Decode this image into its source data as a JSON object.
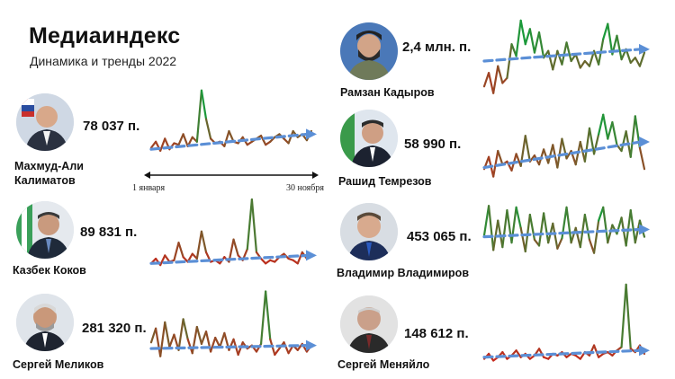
{
  "header": {
    "title": "Медиаиндекс",
    "subtitle": "Динамика и тренды 2022"
  },
  "axis": {
    "start_label": "1 января",
    "end_label": "30 ноября"
  },
  "colors": {
    "high": "#1a9a3a",
    "mid": "#7a5a2a",
    "low": "#e01818",
    "trend": "#5b8fd6"
  },
  "chart_data": [
    {
      "type": "line",
      "person": "Махмуд-Али Калиматов",
      "name_lines": [
        "Махмуд-Али",
        "Калиматов"
      ],
      "value_label": "78 037 п.",
      "values": [
        22,
        30,
        18,
        34,
        20,
        28,
        26,
        40,
        24,
        36,
        30,
        98,
        60,
        34,
        28,
        30,
        24,
        44,
        30,
        28,
        36,
        26,
        30,
        34,
        38,
        26,
        30,
        36,
        40,
        34,
        28,
        44,
        36,
        40,
        32,
        44
      ],
      "trend": [
        20,
        40
      ]
    },
    {
      "type": "line",
      "person": "Казбек Коков",
      "name_lines": [
        "Казбек Коков"
      ],
      "value_label": "89 831 п.",
      "values": [
        12,
        18,
        10,
        22,
        14,
        16,
        38,
        20,
        14,
        24,
        18,
        52,
        26,
        14,
        16,
        12,
        20,
        14,
        42,
        22,
        16,
        30,
        92,
        26,
        18,
        12,
        16,
        14,
        20,
        24,
        18,
        16,
        12,
        26,
        18,
        22
      ],
      "trend": [
        12,
        22
      ]
    },
    {
      "type": "line",
      "person": "Сергей Меликов",
      "name_lines": [
        "Сергей Меликов"
      ],
      "value_label": "281 320 п.",
      "values": [
        30,
        48,
        12,
        56,
        24,
        40,
        20,
        60,
        34,
        16,
        50,
        28,
        44,
        18,
        36,
        24,
        42,
        20,
        34,
        14,
        30,
        22,
        26,
        18,
        28,
        96,
        34,
        14,
        22,
        30,
        16,
        26,
        20,
        28,
        18,
        26
      ],
      "trend": [
        22,
        26
      ]
    },
    {
      "type": "line",
      "person": "Рамзан Кадыров",
      "name_lines": [
        "Рамзан Кадыров"
      ],
      "value_label": "2,4 млн. п.",
      "values": [
        20,
        36,
        12,
        44,
        24,
        30,
        70,
        56,
        98,
        70,
        88,
        60,
        84,
        54,
        62,
        40,
        62,
        46,
        72,
        50,
        58,
        42,
        50,
        44,
        62,
        46,
        76,
        94,
        58,
        80,
        52,
        64,
        48,
        54,
        44,
        60
      ],
      "trend": [
        50,
        64
      ]
    },
    {
      "type": "line",
      "person": "Рашид Темрезов",
      "name_lines": [
        "Рашид Темрезов"
      ],
      "value_label": "58 990 п.",
      "values": [
        20,
        36,
        10,
        44,
        26,
        30,
        18,
        40,
        24,
        64,
        30,
        38,
        26,
        46,
        28,
        52,
        22,
        60,
        34,
        44,
        26,
        56,
        30,
        74,
        40,
        66,
        92,
        60,
        82,
        52,
        44,
        70,
        36,
        90,
        48,
        20
      ],
      "trend": [
        22,
        56
      ]
    },
    {
      "type": "line",
      "person": "Владимир Владимиров",
      "name_lines": [
        "Владимир Владимиров"
      ],
      "value_label": "453 065 п.",
      "values": [
        50,
        90,
        30,
        70,
        34,
        84,
        40,
        88,
        60,
        28,
        78,
        44,
        36,
        80,
        40,
        66,
        32,
        46,
        88,
        40,
        60,
        34,
        78,
        44,
        26,
        70,
        88,
        40,
        64,
        52,
        74,
        36,
        84,
        40,
        70,
        48
      ],
      "trend": [
        48,
        58
      ]
    },
    {
      "type": "line",
      "person": "Сергей Меняйло",
      "name_lines": [
        "Сергей Меняйло"
      ],
      "value_label": "148 612  п.",
      "values": [
        10,
        16,
        8,
        12,
        18,
        10,
        14,
        20,
        12,
        16,
        10,
        14,
        22,
        12,
        10,
        16,
        14,
        18,
        12,
        16,
        14,
        10,
        18,
        14,
        26,
        12,
        16,
        18,
        14,
        20,
        24,
        98,
        22,
        18,
        26,
        16
      ],
      "trend": [
        12,
        20
      ]
    }
  ]
}
